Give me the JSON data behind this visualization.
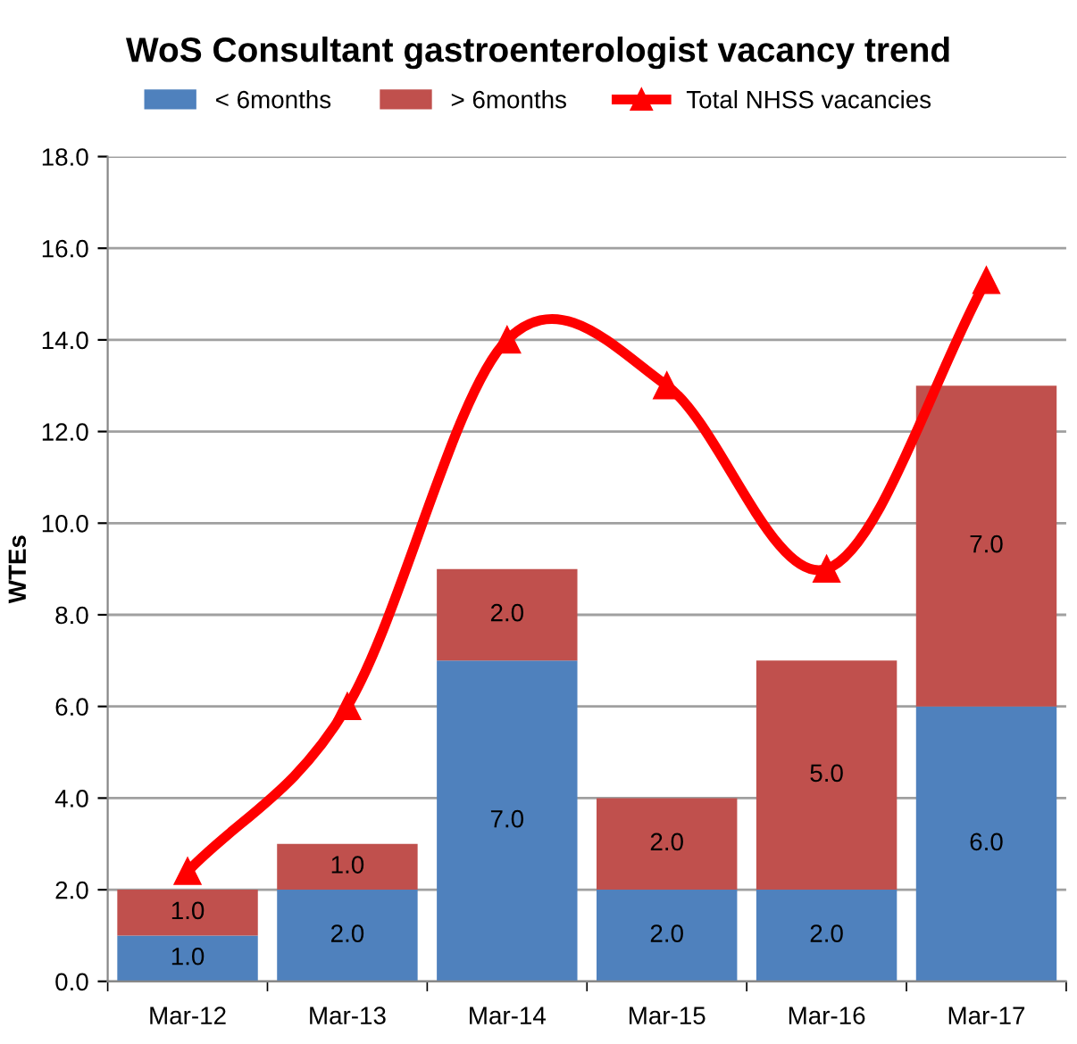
{
  "chart_data": {
    "type": "bar",
    "title": "WoS Consultant gastroenterologist vacancy trend",
    "ylabel": "WTEs",
    "categories": [
      "Mar-12",
      "Mar-13",
      "Mar-14",
      "Mar-15",
      "Mar-16",
      "Mar-17"
    ],
    "stacked": true,
    "series": [
      {
        "name": "< 6months",
        "color": "#4f81bd",
        "values": [
          1.0,
          2.0,
          7.0,
          2.0,
          2.0,
          6.0
        ],
        "value_labels": [
          "1.0",
          "2.0",
          "7.0",
          "2.0",
          "2.0",
          "6.0"
        ]
      },
      {
        "name": "> 6months",
        "color": "#c0504d",
        "values": [
          1.0,
          1.0,
          2.0,
          2.0,
          5.0,
          7.0
        ],
        "value_labels": [
          "1.0",
          "1.0",
          "2.0",
          "2.0",
          "5.0",
          "7.0"
        ]
      },
      {
        "name": "Total NHSS vacancies",
        "type": "line",
        "color": "#ff0000",
        "marker": "triangle",
        "values": [
          2.4,
          6.0,
          14.0,
          13.0,
          9.0,
          15.3
        ]
      }
    ],
    "ylim": [
      0,
      18
    ],
    "yticks": [
      {
        "value": 0,
        "label": "0.0"
      },
      {
        "value": 2,
        "label": "2.0"
      },
      {
        "value": 4,
        "label": "4.0"
      },
      {
        "value": 6,
        "label": "6.0"
      },
      {
        "value": 8,
        "label": "8.0"
      },
      {
        "value": 10,
        "label": "10.0"
      },
      {
        "value": 12,
        "label": "12.0"
      },
      {
        "value": 14,
        "label": "14.0"
      },
      {
        "value": 16,
        "label": "16.0"
      },
      {
        "value": 18,
        "label": "18.0"
      }
    ],
    "grid": "y",
    "legend": "top"
  }
}
